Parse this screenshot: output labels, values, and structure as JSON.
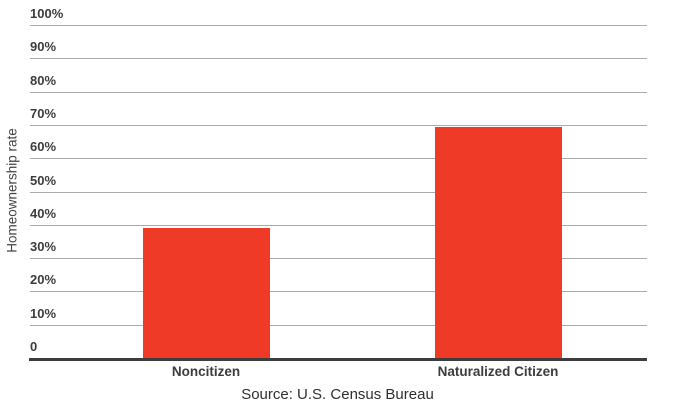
{
  "chart_data": {
    "type": "bar",
    "title": "",
    "xlabel": "",
    "ylabel": "Homeownership rate",
    "categories": [
      "Noncitizen",
      "Naturalized Citizen"
    ],
    "values": [
      39,
      69.5
    ],
    "ylim": [
      0,
      100
    ],
    "ytick_step": 10,
    "ytick_labels": [
      "0",
      "10%",
      "20%",
      "30%",
      "40%",
      "50%",
      "60%",
      "70%",
      "80%",
      "90%",
      "100%"
    ],
    "grid": true,
    "legend": false,
    "bar_color": "#ee3a26",
    "gridline_color": "#ababab",
    "axis_color": "#3d3d3d",
    "label_color": "#3c3c3c",
    "source": "Source: U.S. Census Bureau"
  }
}
